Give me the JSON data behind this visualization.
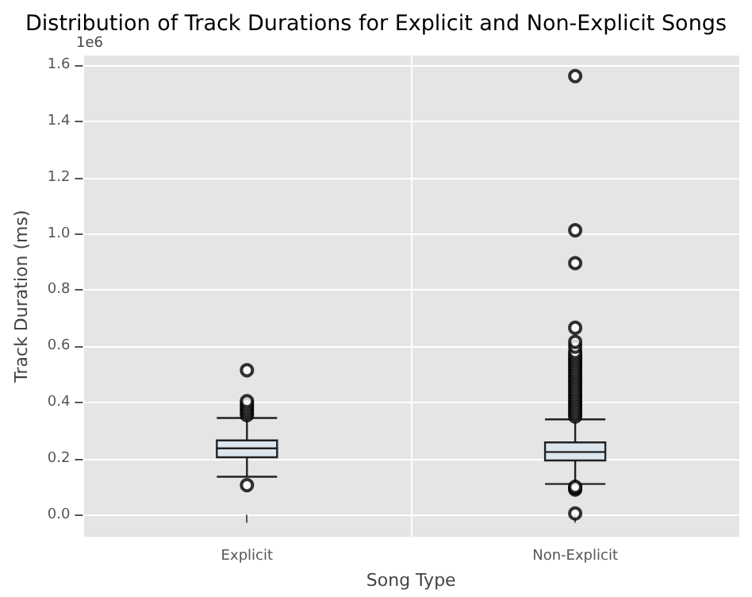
{
  "chart_data": {
    "type": "box",
    "title": "Distribution of Track Durations for Explicit and Non-Explicit Songs",
    "xlabel": "Song Type",
    "ylabel": "Track Duration (ms)",
    "annotations": [
      "1e6"
    ],
    "categories": [
      "Explicit",
      "Non-Explicit"
    ],
    "boxes": [
      {
        "low": 0.136,
        "q1": 0.205,
        "median": 0.237,
        "q3": 0.265,
        "high": 0.345,
        "outliers": [
          0.106,
          0.355,
          0.365,
          0.375,
          0.385,
          0.395,
          0.405,
          0.515
        ]
      },
      {
        "low": 0.11,
        "q1": 0.194,
        "median": 0.224,
        "q3": 0.258,
        "high": 0.34,
        "outliers": [
          0.005,
          0.09,
          0.095,
          0.1,
          0.35,
          0.36,
          0.37,
          0.38,
          0.39,
          0.4,
          0.41,
          0.42,
          0.43,
          0.44,
          0.45,
          0.46,
          0.47,
          0.48,
          0.49,
          0.5,
          0.51,
          0.52,
          0.53,
          0.54,
          0.55,
          0.56,
          0.57,
          0.58,
          0.599,
          0.616,
          0.666,
          0.896,
          1.013,
          1.562
        ]
      }
    ],
    "color": "#dbe6ee",
    "ylim": [
      -0.078,
      1.635
    ],
    "yticks": [
      {
        "value": 0,
        "label": "0.0"
      },
      0.2,
      0.4,
      0.6,
      0.8,
      {
        "value": 1,
        "label": "1.0"
      },
      1.2,
      1.4,
      1.6
    ],
    "grid": true,
    "marker": "circle"
  }
}
